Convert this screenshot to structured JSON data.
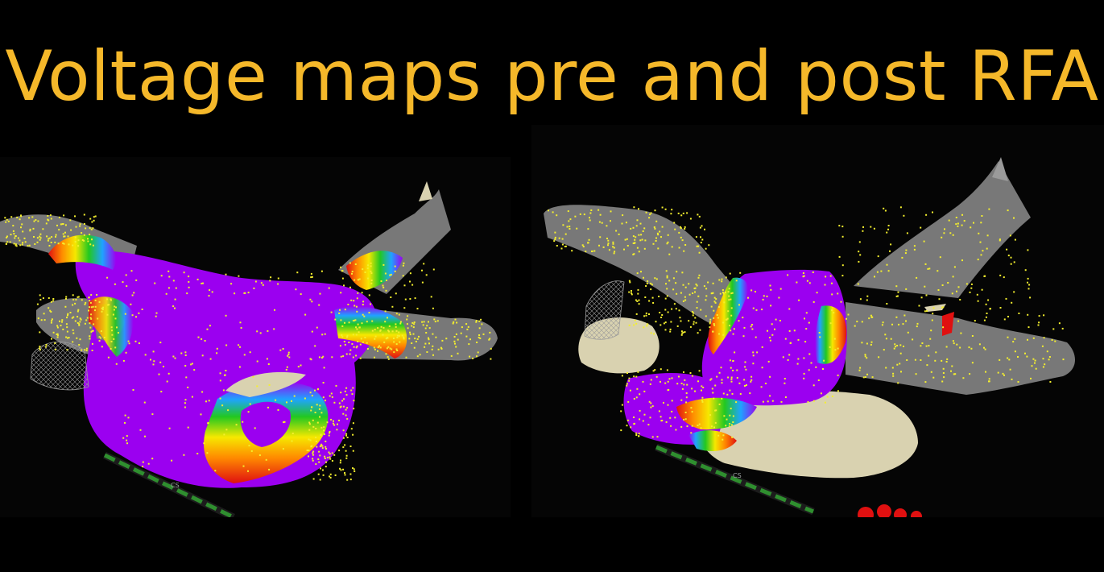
{
  "slide": {
    "title": "Voltage maps pre and post RFA"
  },
  "panels": [
    {
      "id": "pre",
      "marker_label": "CS"
    },
    {
      "id": "post",
      "marker_label": "CS"
    }
  ],
  "colors": {
    "background": "#000000",
    "title": "#f5b82a",
    "healthy_tissue": "#9b00f0",
    "scar_tissue": "#787878",
    "unmapped_tissue": "#d9d2b0",
    "point_tags": "#f4ef2e",
    "catheter": "#2f8f2f",
    "ablation_lesion": "#e01010"
  },
  "icons": [
    "left-atrium-shell",
    "voltage-map-overlay",
    "catheter-icon",
    "mapping-point-cloud",
    "mesh-patch"
  ]
}
